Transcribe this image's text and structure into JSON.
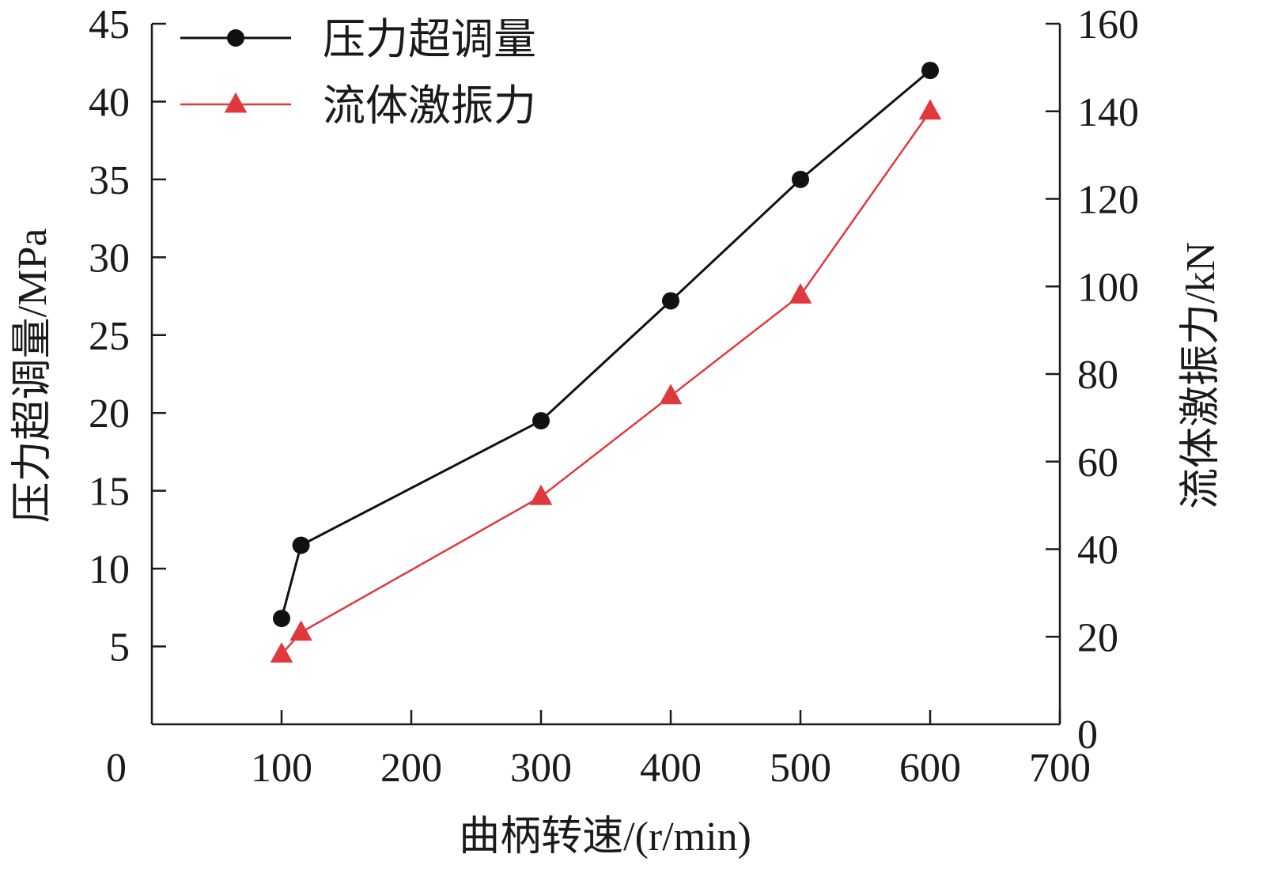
{
  "chart_data": {
    "type": "line",
    "title": "",
    "xlabel": "曲柄转速/(r/min)",
    "ylabel_left": "压力超调量/MPa",
    "ylabel_right": "流体激振力/kN",
    "xlim": [
      0,
      700
    ],
    "ylim_left": [
      0,
      45
    ],
    "ylim_right": [
      0,
      160
    ],
    "x_ticks": [
      0,
      100,
      200,
      300,
      400,
      500,
      600,
      700
    ],
    "y_left_ticks": [
      5,
      10,
      15,
      20,
      25,
      30,
      35,
      40,
      45
    ],
    "y_right_ticks": [
      0,
      20,
      40,
      60,
      80,
      100,
      120,
      140,
      160
    ],
    "grid": false,
    "legend_position": "top-left",
    "series": [
      {
        "name": "压力超调量",
        "axis": "left",
        "color": "#111111",
        "marker": "circle",
        "x": [
          100,
          115,
          300,
          400,
          500,
          600
        ],
        "y": [
          6.8,
          11.5,
          19.5,
          27.2,
          35.0,
          42.0
        ]
      },
      {
        "name": "流体激振力",
        "axis": "right",
        "color": "#e0383d",
        "marker": "triangle",
        "x": [
          100,
          115,
          300,
          400,
          500,
          600
        ],
        "y": [
          16,
          21,
          52,
          75,
          98,
          140
        ]
      }
    ]
  }
}
